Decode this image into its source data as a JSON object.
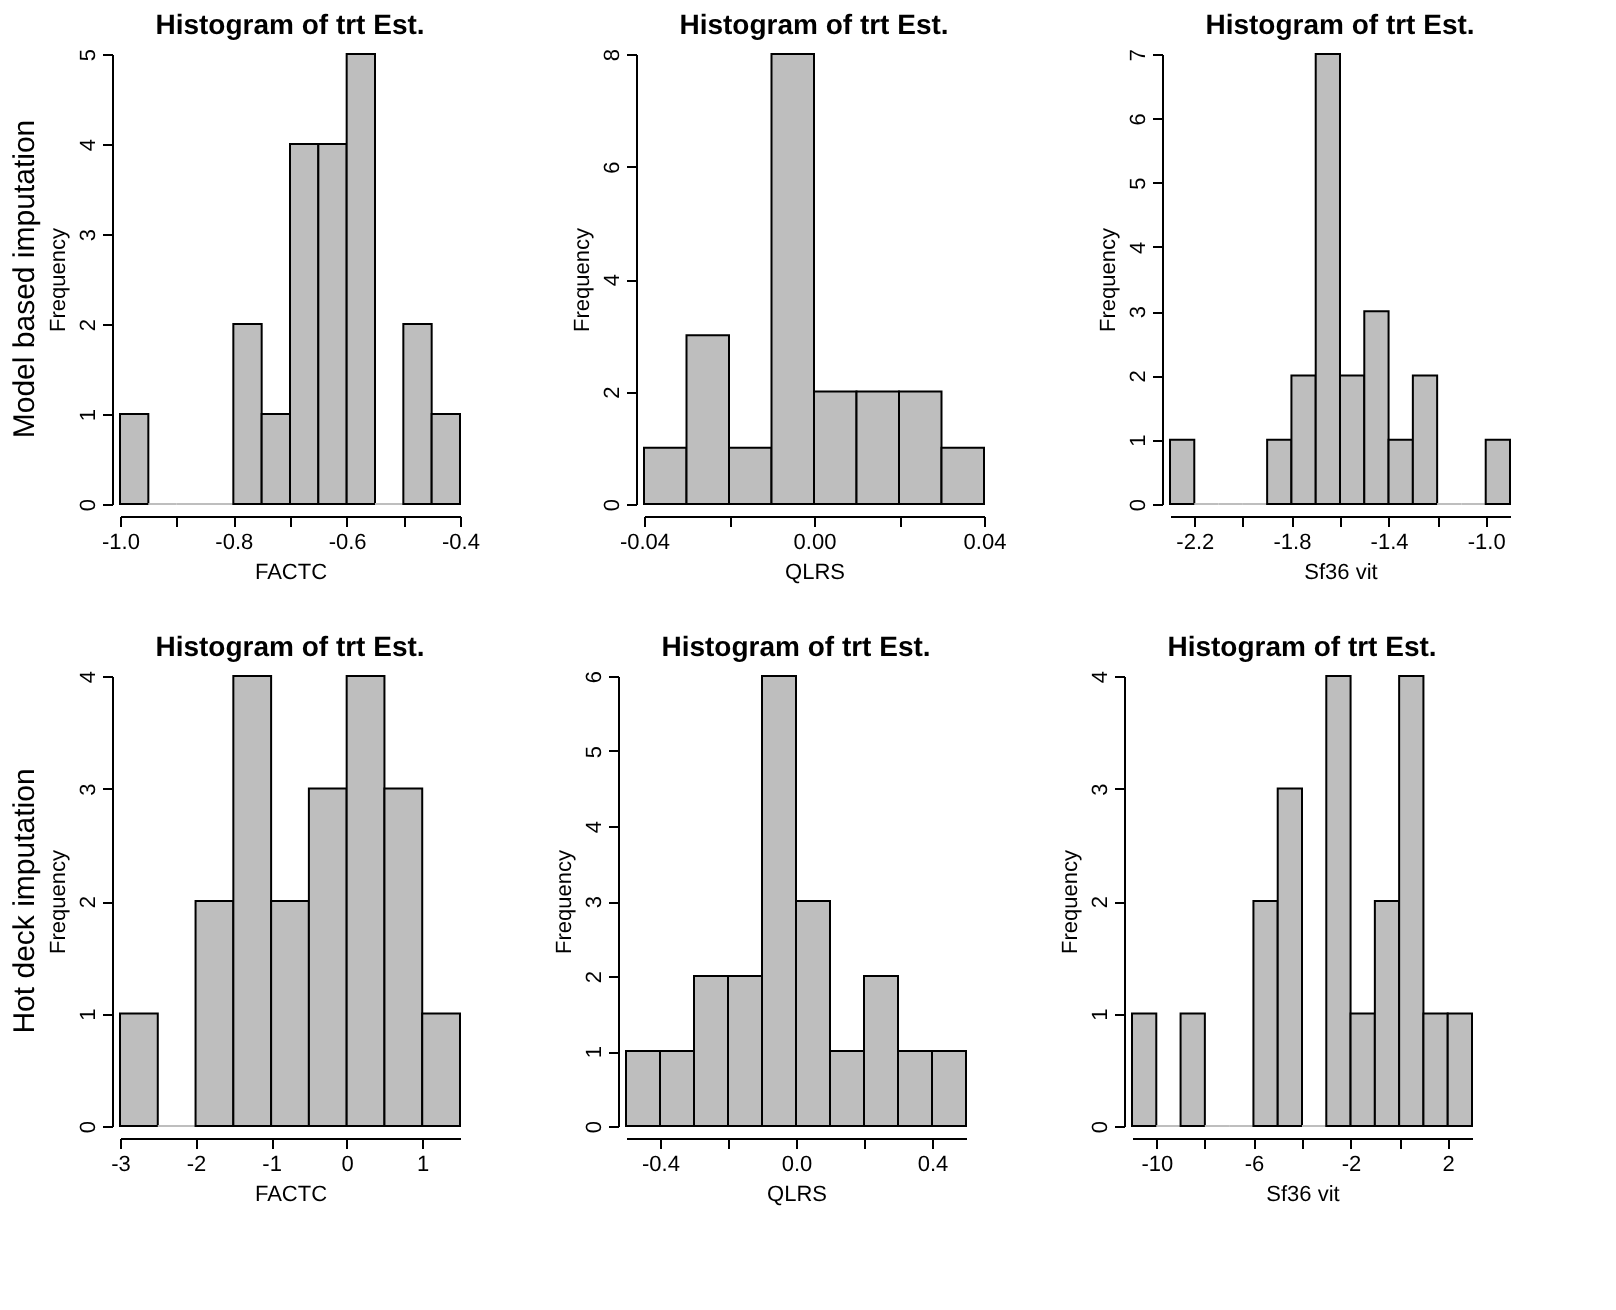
{
  "chart_data": [
    {
      "type": "histogram",
      "title": "Histogram of trt Est.",
      "xlabel": "FACTC",
      "ylabel": "Frequency",
      "annotations": [
        "Model based imputation"
      ],
      "color": "#bebebe",
      "bins": [
        -1.0,
        -0.95,
        -0.9,
        -0.85,
        -0.8,
        -0.75,
        -0.7,
        -0.65,
        -0.6,
        -0.55,
        -0.5,
        -0.45,
        -0.4
      ],
      "values": [
        1,
        0,
        0,
        0,
        2,
        1,
        4,
        4,
        5,
        0,
        2,
        1
      ],
      "xlim": [
        -1.0,
        -0.4
      ],
      "xticks": [
        {
          "value": -1.0,
          "label": "-1.0"
        },
        {
          "value": -0.9,
          "label": null
        },
        -0.8,
        {
          "value": -0.7,
          "label": null
        },
        -0.6,
        {
          "value": -0.5,
          "label": null
        },
        -0.4
      ],
      "ylim": [
        0,
        5
      ],
      "yticks": [
        0,
        1,
        2,
        3,
        4,
        5
      ]
    },
    {
      "type": "histogram",
      "title": "Histogram of trt Est.",
      "xlabel": "QLRS",
      "ylabel": "Frequency",
      "color": "#bebebe",
      "bins": [
        -0.04,
        -0.03,
        -0.02,
        -0.01,
        0.0,
        0.01,
        0.02,
        0.03,
        0.04
      ],
      "values": [
        1,
        3,
        1,
        8,
        2,
        2,
        2,
        1
      ],
      "xlim": [
        -0.04,
        0.04
      ],
      "xticks": [
        -0.04,
        {
          "value": -0.02,
          "label": null
        },
        {
          "value": 0.0,
          "label": "0.00"
        },
        {
          "value": 0.02,
          "label": null
        },
        0.04
      ],
      "ylim": [
        0,
        8
      ],
      "yticks": [
        0,
        2,
        4,
        6,
        8
      ]
    },
    {
      "type": "histogram",
      "title": "Histogram of trt Est.",
      "xlabel": "Sf36 vit",
      "ylabel": "Frequency",
      "color": "#bebebe",
      "bins": [
        -2.3,
        -2.2,
        -2.1,
        -2.0,
        -1.9,
        -1.8,
        -1.7,
        -1.6,
        -1.5,
        -1.4,
        -1.3,
        -1.2,
        -1.1,
        -1.0,
        -0.9
      ],
      "values": [
        1,
        0,
        0,
        0,
        1,
        2,
        7,
        2,
        3,
        1,
        2,
        0,
        0,
        1
      ],
      "xlim": [
        -2.3,
        -0.9
      ],
      "xticks": [
        -2.2,
        {
          "value": -2.0,
          "label": null
        },
        -1.8,
        {
          "value": -1.6,
          "label": null
        },
        -1.4,
        {
          "value": -1.2,
          "label": null
        },
        {
          "value": -1.0,
          "label": "-1.0"
        }
      ],
      "ylim": [
        0,
        7
      ],
      "yticks": [
        0,
        1,
        2,
        3,
        4,
        5,
        6,
        7
      ]
    },
    {
      "type": "histogram",
      "title": "Histogram of trt Est.",
      "xlabel": "FACTC",
      "ylabel": "Frequency",
      "annotations": [
        "Hot deck imputation"
      ],
      "color": "#bebebe",
      "bins": [
        -3,
        -2.5,
        -2,
        -1.5,
        -1,
        -0.5,
        0,
        0.5,
        1,
        1.5
      ],
      "values": [
        1,
        0,
        2,
        4,
        2,
        3,
        4,
        3,
        1
      ],
      "xlim": [
        -3,
        1.5
      ],
      "xticks": [
        -3,
        -2,
        -1,
        0,
        1
      ],
      "ylim": [
        0,
        4
      ],
      "yticks": [
        0,
        1,
        2,
        3,
        4
      ]
    },
    {
      "type": "histogram",
      "title": "Histogram of trt Est.",
      "xlabel": "QLRS",
      "ylabel": "Frequency",
      "color": "#bebebe",
      "bins": [
        -0.5,
        -0.4,
        -0.3,
        -0.2,
        -0.1,
        0.0,
        0.1,
        0.2,
        0.3,
        0.4,
        0.5
      ],
      "values": [
        1,
        1,
        2,
        2,
        6,
        3,
        1,
        2,
        1,
        1
      ],
      "xlim": [
        -0.5,
        0.5
      ],
      "xticks": [
        -0.4,
        {
          "value": -0.2,
          "label": null
        },
        {
          "value": 0.0,
          "label": "0.0"
        },
        {
          "value": 0.2,
          "label": null
        },
        0.4
      ],
      "ylim": [
        0,
        6
      ],
      "yticks": [
        0,
        1,
        2,
        3,
        4,
        5,
        6
      ]
    },
    {
      "type": "histogram",
      "title": "Histogram of trt Est.",
      "xlabel": "Sf36 vit",
      "ylabel": "Frequency",
      "color": "#bebebe",
      "bins": [
        -11,
        -10,
        -9,
        -8,
        -7,
        -6,
        -5,
        -4,
        -3,
        -2,
        -1,
        0,
        1,
        2,
        3
      ],
      "values": [
        1,
        0,
        1,
        0,
        0,
        2,
        3,
        0,
        4,
        1,
        2,
        4,
        1,
        1
      ],
      "xlim": [
        -11,
        3
      ],
      "xticks": [
        -10,
        {
          "value": -8,
          "label": null
        },
        -6,
        {
          "value": -4,
          "label": null
        },
        -2,
        {
          "value": 0,
          "label": null
        },
        2
      ],
      "ylim": [
        0,
        4
      ],
      "yticks": [
        0,
        1,
        2,
        3,
        4
      ]
    }
  ]
}
